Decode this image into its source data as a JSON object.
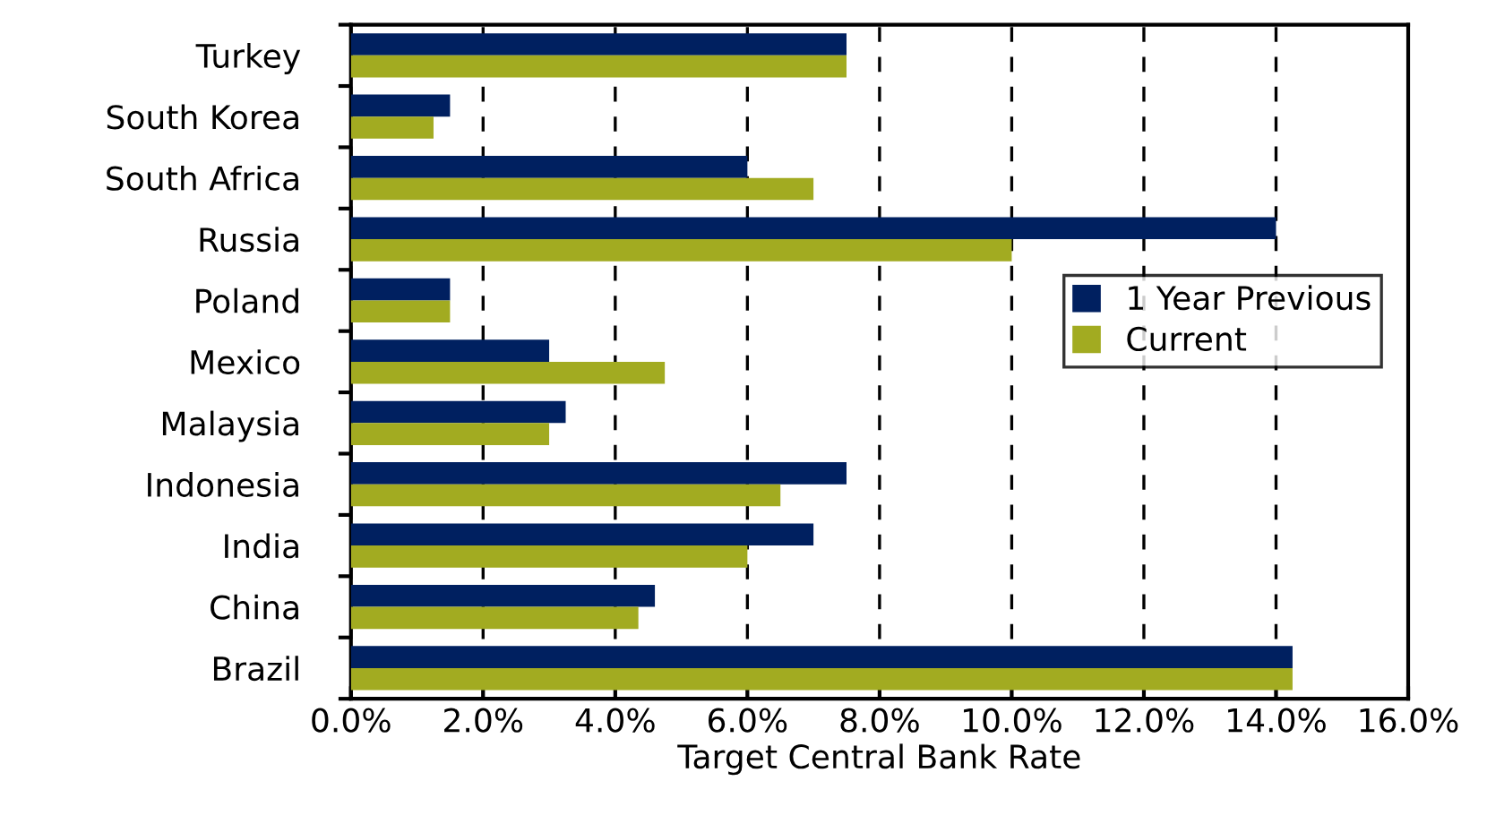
{
  "chart_data": {
    "type": "bar",
    "orientation": "horizontal",
    "xlabel": "Target Central Bank Rate",
    "categories": [
      "Turkey",
      "South Korea",
      "South Africa",
      "Russia",
      "Poland",
      "Mexico",
      "Malaysia",
      "Indonesia",
      "India",
      "China",
      "Brazil"
    ],
    "series": [
      {
        "name": "1 Year Previous",
        "color": "#002060",
        "values": [
          7.5,
          1.5,
          6.0,
          14.0,
          1.5,
          3.0,
          3.25,
          7.5,
          7.0,
          4.6,
          14.25
        ]
      },
      {
        "name": "Current",
        "color": "#a2ab21",
        "values": [
          7.5,
          1.25,
          7.0,
          10.0,
          1.5,
          4.75,
          3.0,
          6.5,
          6.0,
          4.35,
          14.25
        ]
      }
    ],
    "xlim": [
      0,
      16
    ],
    "xticks": [
      {
        "value": 0,
        "label": "0.0%"
      },
      {
        "value": 2,
        "label": "2.0%"
      },
      {
        "value": 4,
        "label": "4.0%"
      },
      {
        "value": 6,
        "label": "6.0%"
      },
      {
        "value": 8,
        "label": "8.0%"
      },
      {
        "value": 10,
        "label": "10.0%"
      },
      {
        "value": 12,
        "label": "12.0%"
      },
      {
        "value": 14,
        "label": "14.0%"
      },
      {
        "value": 16,
        "label": "16.0%"
      }
    ],
    "grid": "x",
    "legend": "right"
  }
}
